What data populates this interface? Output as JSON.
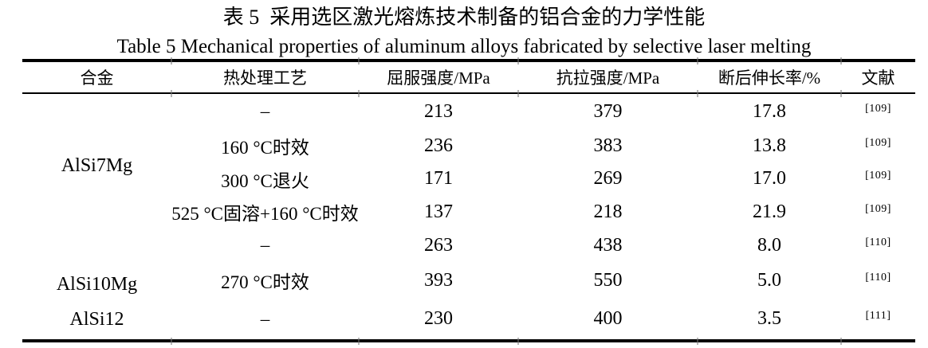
{
  "titles": {
    "zh": "表 5  采用选区激光熔炼技术制备的铝合金的力学性能",
    "en": "Table 5 Mechanical properties of aluminum alloys fabricated by selective laser melting"
  },
  "table": {
    "headers": {
      "alloy": "合金",
      "treatment": "热处理工艺",
      "yield": "屈服强度/MPa",
      "tensile": "抗拉强度/MPa",
      "elongation": "断后伸长率/%",
      "reference": "文献"
    },
    "alloy_groups": [
      {
        "name": "AlSi7Mg",
        "row_count": 4
      },
      {
        "name": "AlSi10Mg",
        "row_count": 2
      },
      {
        "name": "AlSi12",
        "row_count": 1
      }
    ],
    "rows": [
      {
        "treatment": "–",
        "yield_mpa": "213",
        "tensile_mpa": "379",
        "elongation_pct": "17.8",
        "reference": "[109]"
      },
      {
        "treatment": "160 °C时效",
        "yield_mpa": "236",
        "tensile_mpa": "383",
        "elongation_pct": "13.8",
        "reference": "[109]"
      },
      {
        "treatment": "300 °C退火",
        "yield_mpa": "171",
        "tensile_mpa": "269",
        "elongation_pct": "17.0",
        "reference": "[109]"
      },
      {
        "treatment": "525 °C固溶+160 °C时效",
        "yield_mpa": "137",
        "tensile_mpa": "218",
        "elongation_pct": "21.9",
        "reference": "[109]"
      },
      {
        "treatment": "–",
        "yield_mpa": "263",
        "tensile_mpa": "438",
        "elongation_pct": "8.0",
        "reference": "[110]"
      },
      {
        "treatment": "270 °C时效",
        "yield_mpa": "393",
        "tensile_mpa": "550",
        "elongation_pct": "5.0",
        "reference": "[110]"
      },
      {
        "treatment": "–",
        "yield_mpa": "230",
        "tensile_mpa": "400",
        "elongation_pct": "3.5",
        "reference": "[111]"
      }
    ]
  },
  "colors": {
    "background": "#ffffff",
    "text": "#000000",
    "rule": "#000000"
  },
  "chart_data": {
    "type": "table",
    "title": "表 5 采用选区激光熔炼技术制备的铝合金的力学性能 / Table 5 Mechanical properties of aluminum alloys fabricated by selective laser melting",
    "columns": [
      "合金",
      "热处理工艺",
      "屈服强度/MPa",
      "抗拉强度/MPa",
      "断后伸长率/%",
      "文献"
    ],
    "rows": [
      [
        "AlSi7Mg",
        "–",
        213,
        379,
        17.8,
        "[109]"
      ],
      [
        "AlSi7Mg",
        "160 °C时效",
        236,
        383,
        13.8,
        "[109]"
      ],
      [
        "AlSi7Mg",
        "300 °C退火",
        171,
        269,
        17.0,
        "[109]"
      ],
      [
        "AlSi7Mg",
        "525 °C固溶+160 °C时效",
        137,
        218,
        21.9,
        "[109]"
      ],
      [
        "AlSi10Mg",
        "–",
        263,
        438,
        8.0,
        "[110]"
      ],
      [
        "AlSi10Mg",
        "270 °C时效",
        393,
        550,
        5.0,
        "[110]"
      ],
      [
        "AlSi12",
        "–",
        230,
        400,
        3.5,
        "[111]"
      ]
    ]
  }
}
